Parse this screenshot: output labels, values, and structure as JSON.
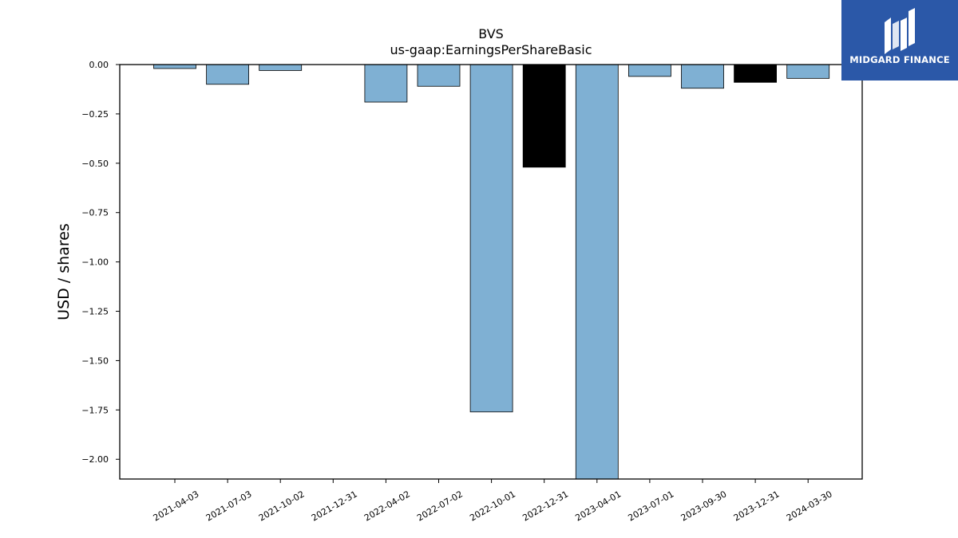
{
  "logo": {
    "text": "MIDGARD FINANCE",
    "background_color": "#2b58a8"
  },
  "chart_data": {
    "type": "bar",
    "title": "BVS",
    "subtitle": "us-gaap:EarningsPerShareBasic",
    "xlabel": "",
    "ylabel": "USD / shares",
    "ylim": [
      -2.1,
      0.0
    ],
    "yticks": [
      0.0,
      -0.25,
      -0.5,
      -0.75,
      -1.0,
      -1.25,
      -1.5,
      -1.75,
      -2.0
    ],
    "ytick_labels": [
      "0.00",
      "−0.25",
      "−0.50",
      "−0.75",
      "−1.00",
      "−1.25",
      "−1.50",
      "−1.75",
      "−2.00"
    ],
    "grid": false,
    "categories": [
      "2021-04-03",
      "2021-07-03",
      "2021-10-02",
      "2021-12-31",
      "2022-04-02",
      "2022-07-02",
      "2022-10-01",
      "2022-12-31",
      "2023-04-01",
      "2023-07-01",
      "2023-09-30",
      "2023-12-31",
      "2024-03-30"
    ],
    "values": [
      -0.02,
      -0.1,
      -0.03,
      0.0,
      -0.19,
      -0.11,
      -1.76,
      -0.52,
      -2.1,
      -0.06,
      -0.12,
      -0.09,
      -0.07
    ],
    "bar_colors": [
      "#7fb0d3",
      "#7fb0d3",
      "#7fb0d3",
      "#7fb0d3",
      "#7fb0d3",
      "#7fb0d3",
      "#7fb0d3",
      "#000000",
      "#7fb0d3",
      "#7fb0d3",
      "#7fb0d3",
      "#000000",
      "#7fb0d3"
    ]
  }
}
